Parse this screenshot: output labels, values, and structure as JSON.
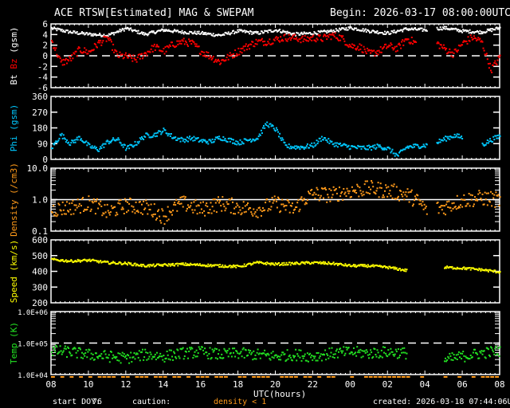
{
  "header": {
    "title": "ACE RTSW[Estimated] MAG & SWEPAM",
    "begin": "Begin: 2026-03-17 08:00:00UTC"
  },
  "footer": {
    "start_doy_label": "start DOY:",
    "start_doy": "76",
    "caution_label": "caution:",
    "caution_text": "density < 1",
    "created": "created: 2026-03-18 07:44:06UTC",
    "xlabel": "UTC(hours)"
  },
  "colors": {
    "bt": "#ffffff",
    "bz": "#ff0000",
    "phi": "#00c8ff",
    "density": "#ff9a1a",
    "speed": "#ffff00",
    "temp": "#22e022",
    "axis": "#ffffff"
  },
  "chart_data": [
    {
      "type": "scatter",
      "panel": "mag",
      "ylabel_parts": [
        "Bt",
        "Bz",
        "(gsm)"
      ],
      "yticks": [
        "6",
        "4",
        "2",
        "0",
        "-2",
        "-4",
        "-6"
      ],
      "ylim": [
        -6,
        6
      ],
      "dashed_zero": 0,
      "series": [
        {
          "name": "Bt",
          "color_key": "bt",
          "x": [
            0,
            1,
            2,
            3,
            4,
            5,
            6,
            7,
            8,
            9,
            10,
            11,
            12,
            13,
            14,
            15,
            16,
            17,
            18,
            19,
            20,
            21,
            22,
            23,
            23.5,
            24
          ],
          "y": [
            5.3,
            4.6,
            4.2,
            4.0,
            5.3,
            4.2,
            5.0,
            4.6,
            4.4,
            4.0,
            4.8,
            4.4,
            5.0,
            4.2,
            4.4,
            4.8,
            5.4,
            4.8,
            4.4,
            5.2,
            5.0,
            5.4,
            4.8,
            4.6,
            5.0,
            5.4
          ],
          "gaps": [
            [
              20.1,
              20.6
            ]
          ],
          "spread": 0.3
        },
        {
          "name": "Bz",
          "color_key": "bz",
          "x": [
            0,
            0.5,
            1,
            1.5,
            2,
            2.5,
            3,
            3.5,
            4,
            4.5,
            5,
            5.5,
            6,
            6.5,
            7,
            7.5,
            8,
            8.5,
            9,
            9.5,
            10,
            10.5,
            11,
            11.5,
            12,
            12.5,
            13,
            13.5,
            14,
            14.5,
            15,
            15.5,
            16,
            16.5,
            17,
            17.5,
            18,
            18.5,
            19,
            19.5,
            20,
            20.5,
            21,
            21.5,
            22,
            22.5,
            23,
            23.5,
            24
          ],
          "y": [
            3.0,
            -1.2,
            -0.5,
            1.3,
            0.8,
            2.5,
            3.5,
            0.2,
            0,
            -0.6,
            0.6,
            1.8,
            1.0,
            2.3,
            2.8,
            2.5,
            1.0,
            0,
            -1.0,
            0,
            1.0,
            2.0,
            2.8,
            2.8,
            3.2,
            3.6,
            3.5,
            3.2,
            3.5,
            3.4,
            4.0,
            3.5,
            2.0,
            1.8,
            0.5,
            1.0,
            2.0,
            1.5,
            3.4,
            2.5,
            null,
            2.8,
            1.5,
            0.5,
            2.5,
            3.6,
            2.8,
            -2.5,
            0
          ],
          "gaps": [
            [
              20.1,
              20.6
            ]
          ],
          "spread": 0.7
        }
      ]
    },
    {
      "type": "scatter",
      "panel": "phi",
      "ylabel": "Phi (gsm)",
      "yticks": [
        "360",
        "270",
        "180",
        "90",
        "0"
      ],
      "ylim": [
        0,
        360
      ],
      "series": [
        {
          "name": "Phi",
          "color_key": "phi",
          "x": [
            0,
            0.5,
            1,
            1.5,
            2,
            2.5,
            3,
            3.5,
            4,
            4.5,
            5,
            5.5,
            6,
            6.5,
            7,
            7.5,
            8,
            8.5,
            9,
            9.5,
            10,
            10.5,
            11,
            11.5,
            12,
            12.5,
            13,
            13.5,
            14,
            14.5,
            15,
            15.5,
            16,
            16.5,
            17,
            17.5,
            18,
            18.5,
            19,
            19.5,
            20,
            20.5,
            21,
            21.5,
            22,
            22.5,
            23,
            23.5,
            24
          ],
          "y": [
            70,
            145,
            95,
            130,
            80,
            60,
            105,
            120,
            65,
            95,
            140,
            145,
            170,
            130,
            115,
            125,
            110,
            105,
            130,
            115,
            100,
            115,
            125,
            210,
            175,
            80,
            75,
            75,
            85,
            130,
            95,
            85,
            75,
            70,
            70,
            80,
            65,
            25,
            75,
            80,
            85,
            95,
            120,
            140,
            130,
            null,
            85,
            115,
            140
          ],
          "gaps": [
            [
              20.1,
              20.6
            ]
          ],
          "spread": 14
        }
      ]
    },
    {
      "type": "scatter",
      "panel": "density",
      "ylabel": "Density (/cm3)",
      "yscale": "log",
      "yticks": [
        "10.0",
        "1.0",
        "0.1"
      ],
      "ylim": [
        0.1,
        10
      ],
      "solid_line": 1.0,
      "series": [
        {
          "name": "Density",
          "color_key": "density",
          "x": [
            0,
            1,
            2,
            3,
            4,
            5,
            6,
            7,
            8,
            9,
            10,
            11,
            12,
            13,
            14,
            15,
            16,
            17,
            18,
            19,
            20,
            21,
            22,
            23,
            24
          ],
          "y": [
            0.5,
            0.6,
            0.8,
            0.4,
            0.7,
            0.6,
            0.3,
            0.8,
            0.5,
            0.8,
            0.6,
            0.5,
            0.8,
            0.5,
            1.6,
            1.5,
            2.0,
            2.4,
            2.0,
            1.5,
            0.5,
            0.6,
            1.0,
            1.2,
            1.0
          ],
          "gaps": [
            [
              20.1,
              20.6
            ]
          ],
          "spread_log": 0.25
        }
      ]
    },
    {
      "type": "scatter",
      "panel": "speed",
      "ylabel": "Speed (km/s)",
      "yticks": [
        "600",
        "500",
        "400",
        "300",
        "200"
      ],
      "ylim": [
        200,
        600
      ],
      "series": [
        {
          "name": "Speed",
          "color_key": "speed",
          "x": [
            0,
            1,
            2,
            3,
            4,
            5,
            6,
            7,
            8,
            9,
            10,
            11,
            12,
            13,
            14,
            15,
            16,
            17,
            18,
            19,
            20,
            21,
            22,
            23,
            24
          ],
          "y": [
            480,
            470,
            475,
            460,
            455,
            440,
            445,
            450,
            445,
            440,
            435,
            460,
            450,
            455,
            460,
            455,
            440,
            440,
            430,
            410,
            null,
            430,
            425,
            415,
            400
          ],
          "gaps": [
            [
              20.1,
              20.6
            ]
          ],
          "spread": 8
        }
      ]
    },
    {
      "type": "scatter",
      "panel": "temp",
      "ylabel": "Temp (K)",
      "yscale": "log",
      "yticks": [
        "1.0E+06",
        "1.0E+05",
        "1.0E+04"
      ],
      "ylim": [
        10000,
        1000000
      ],
      "dashed_line": 100000,
      "series": [
        {
          "name": "Temp",
          "color_key": "temp",
          "x": [
            0,
            1,
            2,
            3,
            4,
            5,
            6,
            7,
            8,
            9,
            10,
            11,
            12,
            13,
            14,
            15,
            16,
            17,
            18,
            19,
            20,
            21,
            22,
            23,
            24
          ],
          "y": [
            60000,
            55000,
            45000,
            40000,
            35000,
            45000,
            40000,
            50000,
            55000,
            45000,
            50000,
            45000,
            40000,
            45000,
            40000,
            50000,
            55000,
            50000,
            55000,
            50000,
            null,
            30000,
            40000,
            50000,
            60000
          ],
          "gaps": [
            [
              20.1,
              20.6
            ]
          ],
          "spread_log": 0.18
        }
      ]
    }
  ],
  "xaxis": {
    "ticks": [
      "08",
      "10",
      "12",
      "14",
      "16",
      "18",
      "20",
      "22",
      "00",
      "02",
      "04",
      "06",
      "08"
    ],
    "hours_span": 24
  }
}
